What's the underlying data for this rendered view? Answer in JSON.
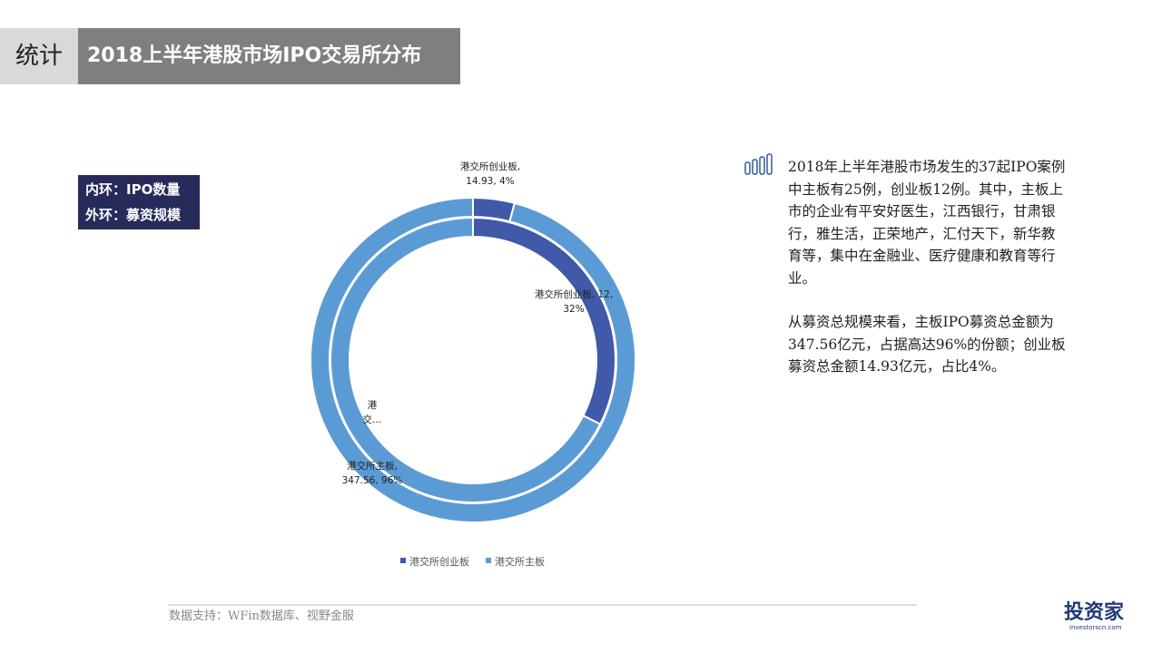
{
  "header": {
    "tag": "统计",
    "title": "2018上半年港股市场IPO交易所分布"
  },
  "chart_data": {
    "type": "donut",
    "categories": [
      "港交所创业板",
      "港交所主板"
    ],
    "colors": [
      "#4059a8",
      "#5b9bd5"
    ],
    "rings": [
      {
        "label": "内环：IPO数量",
        "values": [
          12,
          25
        ],
        "value_labels": [
          "港交所创业板, 12,\n32%",
          "港\n交…"
        ]
      },
      {
        "label": "外环：募资规模",
        "values": [
          14.93,
          347.56
        ],
        "value_labels": [
          "港交所创业板,\n14.93, 4%",
          "港交所主板,\n347.56, 96%"
        ]
      }
    ]
  },
  "paragraphs": [
    "2018年上半年港股市场发生的37起IPO案例中主板有25例，创业板12例。其中，主板上市的企业有平安好医生，江西银行，甘肃银行，雅生活，正荣地产，汇付天下，新华教育等，集中在金融业、医疗健康和教育等行业。",
    "从募资总规模来看，主板IPO募资总金额为347.56亿元，占据高达96%的份额；创业板募资总金额14.93亿元，占比4%。"
  ],
  "source": "数据支持：WFin数据库、视野金服",
  "logo": {
    "name": "投资家",
    "url": "investorscn.com"
  }
}
